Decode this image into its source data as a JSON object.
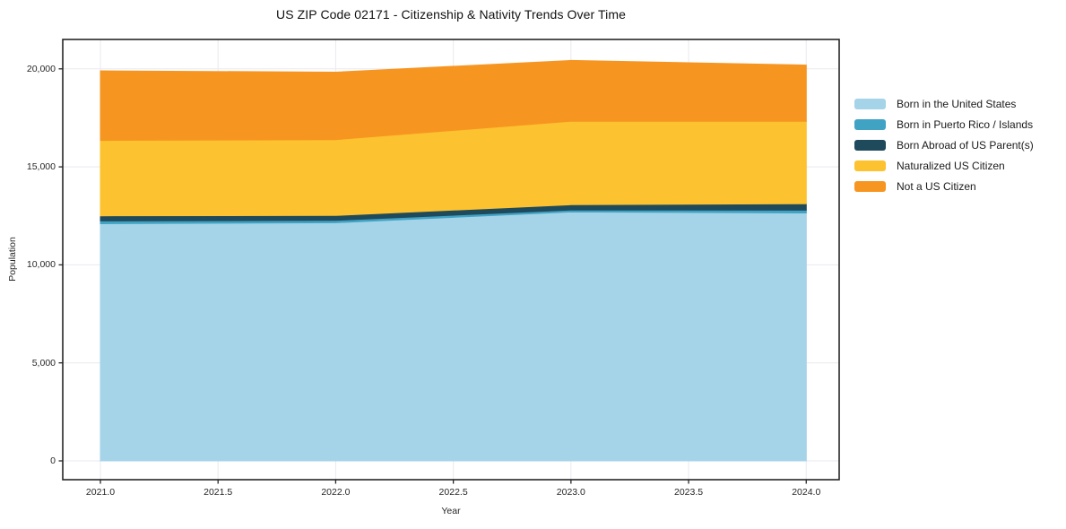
{
  "title": "US ZIP Code 02171 - Citizenship & Nativity Trends Over Time",
  "axes": {
    "x_label": "Year",
    "y_label": "Population",
    "x_ticks": [
      {
        "value": 2021.0,
        "label": "2021.0"
      },
      {
        "value": 2021.5,
        "label": "2021.5"
      },
      {
        "value": 2022.0,
        "label": "2022.0"
      },
      {
        "value": 2022.5,
        "label": "2022.5"
      },
      {
        "value": 2023.0,
        "label": "2023.0"
      },
      {
        "value": 2023.5,
        "label": "2023.5"
      },
      {
        "value": 2024.0,
        "label": "2024.0"
      }
    ],
    "y_ticks": [
      {
        "value": 0,
        "label": "0"
      },
      {
        "value": 5000,
        "label": "5,000"
      },
      {
        "value": 10000,
        "label": "10,000"
      },
      {
        "value": 15000,
        "label": "15,000"
      },
      {
        "value": 20000,
        "label": "20,000"
      }
    ]
  },
  "legend": {
    "entries": [
      {
        "label": "Born in the United States",
        "color": "#a5d3e8"
      },
      {
        "label": "Born in Puerto Rico / Islands",
        "color": "#41a3c4"
      },
      {
        "label": "Born Abroad of US Parent(s)",
        "color": "#1f4a5c"
      },
      {
        "label": "Naturalized US Citizen",
        "color": "#fdc22f"
      },
      {
        "label": "Not a US Citizen",
        "color": "#f79521"
      }
    ]
  },
  "chart_data": {
    "type": "area",
    "stacked": true,
    "title": "US ZIP Code 02171 - Citizenship & Nativity Trends Over Time",
    "xlabel": "Year",
    "ylabel": "Population",
    "x": [
      2021,
      2022,
      2023,
      2024
    ],
    "series": [
      {
        "name": "Born in the United States",
        "color": "#a5d3e8",
        "values": [
          12100,
          12150,
          12700,
          12650
        ]
      },
      {
        "name": "Born in Puerto Rico / Islands",
        "color": "#41a3c4",
        "values": [
          140,
          120,
          100,
          140
        ]
      },
      {
        "name": "Born Abroad of US Parent(s)",
        "color": "#1f4a5c",
        "values": [
          260,
          250,
          270,
          330
        ]
      },
      {
        "name": "Naturalized US Citizen",
        "color": "#fdc22f",
        "values": [
          3850,
          3870,
          4260,
          4210
        ]
      },
      {
        "name": "Not a US Citizen",
        "color": "#f79521",
        "values": [
          3550,
          3440,
          3100,
          2860
        ]
      }
    ],
    "stacked_totals": [
      19900,
      19830,
      20430,
      20190
    ],
    "xlim": [
      2020.84,
      2024.14
    ],
    "ylim": [
      -960,
      21500
    ],
    "grid": true,
    "legend_position": "right"
  },
  "style": {
    "grid_color": "#e9e9f0",
    "spine_color": "#262626",
    "plot_bg": "#ffffff"
  }
}
